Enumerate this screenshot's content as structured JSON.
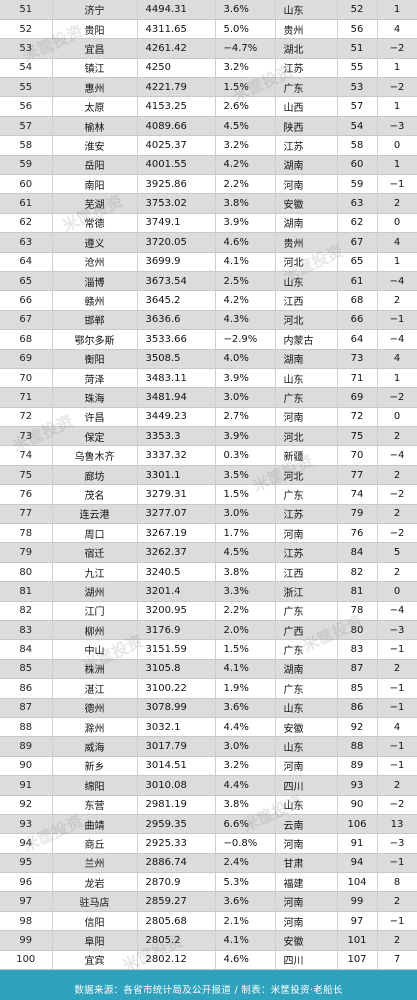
{
  "table": {
    "rows": [
      {
        "rank": "51",
        "city": "济宁",
        "gdp": "4494.31",
        "growth": "3.6%",
        "province": "山东",
        "prev_rank": "52",
        "change": "1"
      },
      {
        "rank": "52",
        "city": "贵阳",
        "gdp": "4311.65",
        "growth": "5.0%",
        "province": "贵州",
        "prev_rank": "56",
        "change": "4"
      },
      {
        "rank": "53",
        "city": "宜昌",
        "gdp": "4261.42",
        "growth": "−4.7%",
        "province": "湖北",
        "prev_rank": "51",
        "change": "−2"
      },
      {
        "rank": "54",
        "city": "镇江",
        "gdp": "4250",
        "growth": "3.2%",
        "province": "江苏",
        "prev_rank": "55",
        "change": "1"
      },
      {
        "rank": "55",
        "city": "惠州",
        "gdp": "4221.79",
        "growth": "1.5%",
        "province": "广东",
        "prev_rank": "53",
        "change": "−2"
      },
      {
        "rank": "56",
        "city": "太原",
        "gdp": "4153.25",
        "growth": "2.6%",
        "province": "山西",
        "prev_rank": "57",
        "change": "1"
      },
      {
        "rank": "57",
        "city": "榆林",
        "gdp": "4089.66",
        "growth": "4.5%",
        "province": "陕西",
        "prev_rank": "54",
        "change": "−3"
      },
      {
        "rank": "58",
        "city": "淮安",
        "gdp": "4025.37",
        "growth": "3.2%",
        "province": "江苏",
        "prev_rank": "58",
        "change": "0"
      },
      {
        "rank": "59",
        "city": "岳阳",
        "gdp": "4001.55",
        "growth": "4.2%",
        "province": "湖南",
        "prev_rank": "60",
        "change": "1"
      },
      {
        "rank": "60",
        "city": "南阳",
        "gdp": "3925.86",
        "growth": "2.2%",
        "province": "河南",
        "prev_rank": "59",
        "change": "−1"
      },
      {
        "rank": "61",
        "city": "芜湖",
        "gdp": "3753.02",
        "growth": "3.8%",
        "province": "安徽",
        "prev_rank": "63",
        "change": "2"
      },
      {
        "rank": "62",
        "city": "常德",
        "gdp": "3749.1",
        "growth": "3.9%",
        "province": "湖南",
        "prev_rank": "62",
        "change": "0"
      },
      {
        "rank": "63",
        "city": "遵义",
        "gdp": "3720.05",
        "growth": "4.6%",
        "province": "贵州",
        "prev_rank": "67",
        "change": "4"
      },
      {
        "rank": "64",
        "city": "沧州",
        "gdp": "3699.9",
        "growth": "4.1%",
        "province": "河北",
        "prev_rank": "65",
        "change": "1"
      },
      {
        "rank": "65",
        "city": "淄博",
        "gdp": "3673.54",
        "growth": "2.5%",
        "province": "山东",
        "prev_rank": "61",
        "change": "−4"
      },
      {
        "rank": "66",
        "city": "赣州",
        "gdp": "3645.2",
        "growth": "4.2%",
        "province": "江西",
        "prev_rank": "68",
        "change": "2"
      },
      {
        "rank": "67",
        "city": "邯郸",
        "gdp": "3636.6",
        "growth": "4.3%",
        "province": "河北",
        "prev_rank": "66",
        "change": "−1"
      },
      {
        "rank": "68",
        "city": "鄂尔多斯",
        "gdp": "3533.66",
        "growth": "−2.9%",
        "province": "内蒙古",
        "prev_rank": "64",
        "change": "−4"
      },
      {
        "rank": "69",
        "city": "衡阳",
        "gdp": "3508.5",
        "growth": "4.0%",
        "province": "湖南",
        "prev_rank": "73",
        "change": "4"
      },
      {
        "rank": "70",
        "city": "菏泽",
        "gdp": "3483.11",
        "growth": "3.9%",
        "province": "山东",
        "prev_rank": "71",
        "change": "1"
      },
      {
        "rank": "71",
        "city": "珠海",
        "gdp": "3481.94",
        "growth": "3.0%",
        "province": "广东",
        "prev_rank": "69",
        "change": "−2"
      },
      {
        "rank": "72",
        "city": "许昌",
        "gdp": "3449.23",
        "growth": "2.7%",
        "province": "河南",
        "prev_rank": "72",
        "change": "0"
      },
      {
        "rank": "73",
        "city": "保定",
        "gdp": "3353.3",
        "growth": "3.9%",
        "province": "河北",
        "prev_rank": "75",
        "change": "2"
      },
      {
        "rank": "74",
        "city": "乌鲁木齐",
        "gdp": "3337.32",
        "growth": "0.3%",
        "province": "新疆",
        "prev_rank": "70",
        "change": "−4"
      },
      {
        "rank": "75",
        "city": "廊坊",
        "gdp": "3301.1",
        "growth": "3.5%",
        "province": "河北",
        "prev_rank": "77",
        "change": "2"
      },
      {
        "rank": "76",
        "city": "茂名",
        "gdp": "3279.31",
        "growth": "1.5%",
        "province": "广东",
        "prev_rank": "74",
        "change": "−2"
      },
      {
        "rank": "77",
        "city": "连云港",
        "gdp": "3277.07",
        "growth": "3.0%",
        "province": "江苏",
        "prev_rank": "79",
        "change": "2"
      },
      {
        "rank": "78",
        "city": "周口",
        "gdp": "3267.19",
        "growth": "1.7%",
        "province": "河南",
        "prev_rank": "76",
        "change": "−2"
      },
      {
        "rank": "79",
        "city": "宿迁",
        "gdp": "3262.37",
        "growth": "4.5%",
        "province": "江苏",
        "prev_rank": "84",
        "change": "5"
      },
      {
        "rank": "80",
        "city": "九江",
        "gdp": "3240.5",
        "growth": "3.8%",
        "province": "江西",
        "prev_rank": "82",
        "change": "2"
      },
      {
        "rank": "81",
        "city": "湖州",
        "gdp": "3201.4",
        "growth": "3.3%",
        "province": "浙江",
        "prev_rank": "81",
        "change": "0"
      },
      {
        "rank": "82",
        "city": "江门",
        "gdp": "3200.95",
        "growth": "2.2%",
        "province": "广东",
        "prev_rank": "78",
        "change": "−4"
      },
      {
        "rank": "83",
        "city": "柳州",
        "gdp": "3176.9",
        "growth": "2.0%",
        "province": "广西",
        "prev_rank": "80",
        "change": "−3"
      },
      {
        "rank": "84",
        "city": "中山",
        "gdp": "3151.59",
        "growth": "1.5%",
        "province": "广东",
        "prev_rank": "83",
        "change": "−1"
      },
      {
        "rank": "85",
        "city": "株洲",
        "gdp": "3105.8",
        "growth": "4.1%",
        "province": "湖南",
        "prev_rank": "87",
        "change": "2"
      },
      {
        "rank": "86",
        "city": "湛江",
        "gdp": "3100.22",
        "growth": "1.9%",
        "province": "广东",
        "prev_rank": "85",
        "change": "−1"
      },
      {
        "rank": "87",
        "city": "德州",
        "gdp": "3078.99",
        "growth": "3.6%",
        "province": "山东",
        "prev_rank": "86",
        "change": "−1"
      },
      {
        "rank": "88",
        "city": "滁州",
        "gdp": "3032.1",
        "growth": "4.4%",
        "province": "安徽",
        "prev_rank": "92",
        "change": "4"
      },
      {
        "rank": "89",
        "city": "威海",
        "gdp": "3017.79",
        "growth": "3.0%",
        "province": "山东",
        "prev_rank": "88",
        "change": "−1"
      },
      {
        "rank": "90",
        "city": "新乡",
        "gdp": "3014.51",
        "growth": "3.2%",
        "province": "河南",
        "prev_rank": "89",
        "change": "−1"
      },
      {
        "rank": "91",
        "city": "绵阳",
        "gdp": "3010.08",
        "growth": "4.4%",
        "province": "四川",
        "prev_rank": "93",
        "change": "2"
      },
      {
        "rank": "92",
        "city": "东营",
        "gdp": "2981.19",
        "growth": "3.8%",
        "province": "山东",
        "prev_rank": "90",
        "change": "−2"
      },
      {
        "rank": "93",
        "city": "曲靖",
        "gdp": "2959.35",
        "growth": "6.6%",
        "province": "云南",
        "prev_rank": "106",
        "change": "13"
      },
      {
        "rank": "94",
        "city": "商丘",
        "gdp": "2925.33",
        "growth": "−0.8%",
        "province": "河南",
        "prev_rank": "91",
        "change": "−3"
      },
      {
        "rank": "95",
        "city": "兰州",
        "gdp": "2886.74",
        "growth": "2.4%",
        "province": "甘肃",
        "prev_rank": "94",
        "change": "−1"
      },
      {
        "rank": "96",
        "city": "龙岩",
        "gdp": "2870.9",
        "growth": "5.3%",
        "province": "福建",
        "prev_rank": "104",
        "change": "8"
      },
      {
        "rank": "97",
        "city": "驻马店",
        "gdp": "2859.27",
        "growth": "3.6%",
        "province": "河南",
        "prev_rank": "99",
        "change": "2"
      },
      {
        "rank": "98",
        "city": "信阳",
        "gdp": "2805.68",
        "growth": "2.1%",
        "province": "河南",
        "prev_rank": "97",
        "change": "−1"
      },
      {
        "rank": "99",
        "city": "阜阳",
        "gdp": "2805.2",
        "growth": "4.1%",
        "province": "安徽",
        "prev_rank": "101",
        "change": "2"
      },
      {
        "rank": "100",
        "city": "宜宾",
        "gdp": "2802.12",
        "growth": "4.6%",
        "province": "四川",
        "prev_rank": "107",
        "change": "7"
      }
    ]
  },
  "footer": {
    "text": "数据来源：各省市统计局及公开报道 / 制表：米筐投资·老船长"
  },
  "watermark": {
    "text": "米筐投资"
  }
}
